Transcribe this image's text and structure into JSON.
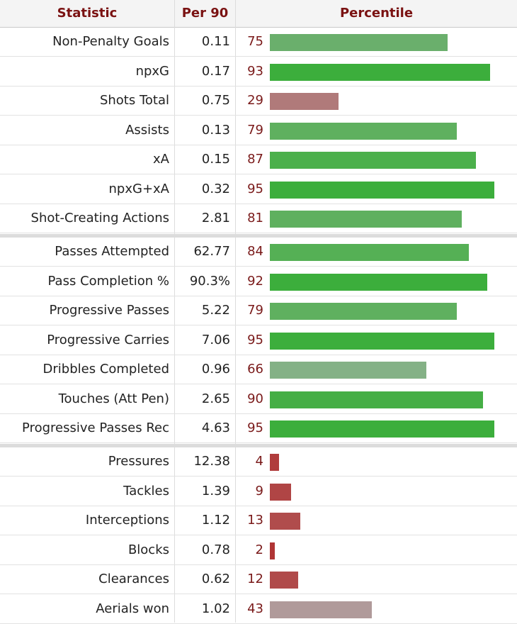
{
  "headers": {
    "statistic": "Statistic",
    "per90": "Per 90",
    "percentile": "Percentile"
  },
  "groups": [
    {
      "rows": [
        {
          "stat": "Non-Penalty Goals",
          "per90": "0.11",
          "percentile": 75,
          "color": "#6aaf6c"
        },
        {
          "stat": "npxG",
          "per90": "0.17",
          "percentile": 93,
          "color": "#3cae3c"
        },
        {
          "stat": "Shots Total",
          "per90": "0.75",
          "percentile": 29,
          "color": "#b07a7a"
        },
        {
          "stat": "Assists",
          "per90": "0.13",
          "percentile": 79,
          "color": "#5fb05f"
        },
        {
          "stat": "xA",
          "per90": "0.15",
          "percentile": 87,
          "color": "#4bb04b"
        },
        {
          "stat": "npxG+xA",
          "per90": "0.32",
          "percentile": 95,
          "color": "#3cae3c"
        },
        {
          "stat": "Shot-Creating Actions",
          "per90": "2.81",
          "percentile": 81,
          "color": "#5fb05f"
        }
      ]
    },
    {
      "rows": [
        {
          "stat": "Passes Attempted",
          "per90": "62.77",
          "percentile": 84,
          "color": "#55b055"
        },
        {
          "stat": "Pass Completion %",
          "per90": "90.3%",
          "percentile": 92,
          "color": "#3cae3c"
        },
        {
          "stat": "Progressive Passes",
          "per90": "5.22",
          "percentile": 79,
          "color": "#5fb05f"
        },
        {
          "stat": "Progressive Carries",
          "per90": "7.06",
          "percentile": 95,
          "color": "#3cae3c"
        },
        {
          "stat": "Dribbles Completed",
          "per90": "0.96",
          "percentile": 66,
          "color": "#84b186"
        },
        {
          "stat": "Touches (Att Pen)",
          "per90": "2.65",
          "percentile": 90,
          "color": "#45ae45"
        },
        {
          "stat": "Progressive Passes Rec",
          "per90": "4.63",
          "percentile": 95,
          "color": "#3cae3c"
        }
      ]
    },
    {
      "rows": [
        {
          "stat": "Pressures",
          "per90": "12.38",
          "percentile": 4,
          "color": "#b03c3c"
        },
        {
          "stat": "Tackles",
          "per90": "1.39",
          "percentile": 9,
          "color": "#b04545"
        },
        {
          "stat": "Interceptions",
          "per90": "1.12",
          "percentile": 13,
          "color": "#b04c4c"
        },
        {
          "stat": "Blocks",
          "per90": "0.78",
          "percentile": 2,
          "color": "#b03535"
        },
        {
          "stat": "Clearances",
          "per90": "0.62",
          "percentile": 12,
          "color": "#b04a4a"
        },
        {
          "stat": "Aerials won",
          "per90": "1.02",
          "percentile": 43,
          "color": "#b09a9a"
        }
      ]
    }
  ]
}
